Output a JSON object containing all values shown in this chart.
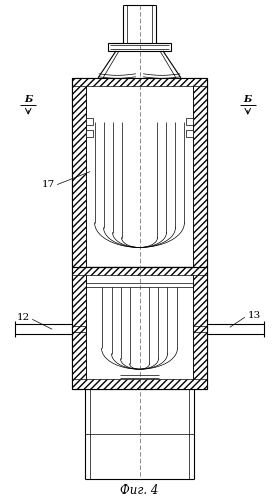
{
  "caption": "Фиг. 4",
  "label_17": "17",
  "label_12": "12",
  "label_13": "13",
  "label_B": "Б",
  "bg_color": "#ffffff",
  "line_color": "#000000",
  "figsize": [
    2.79,
    4.99
  ],
  "dpi": 100
}
